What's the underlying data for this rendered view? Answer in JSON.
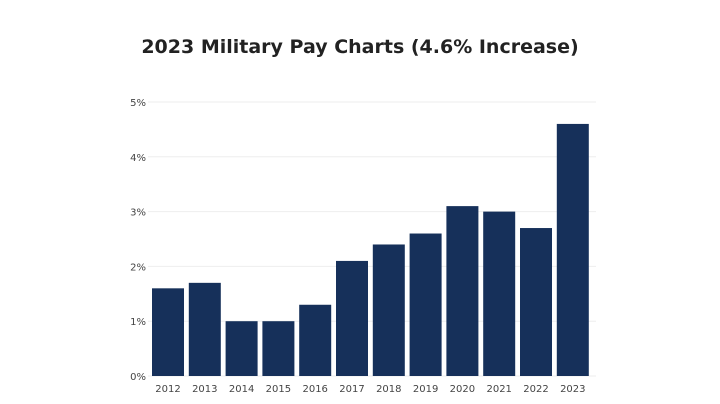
{
  "chart_data": {
    "type": "bar",
    "title": "2023 Military Pay Charts (4.6% Increase)",
    "xlabel": "",
    "ylabel": "",
    "categories": [
      "2012",
      "2013",
      "2014",
      "2015",
      "2016",
      "2017",
      "2018",
      "2019",
      "2020",
      "2021",
      "2022",
      "2023"
    ],
    "values": [
      1.6,
      1.7,
      1.0,
      1.0,
      1.3,
      2.1,
      2.4,
      2.6,
      3.1,
      3.0,
      2.7,
      4.6
    ],
    "ylim": [
      0,
      5
    ],
    "yticks": [
      "0%",
      "1%",
      "2%",
      "3%",
      "4%",
      "5%"
    ],
    "grid": true,
    "bar_color": "#16305a"
  }
}
